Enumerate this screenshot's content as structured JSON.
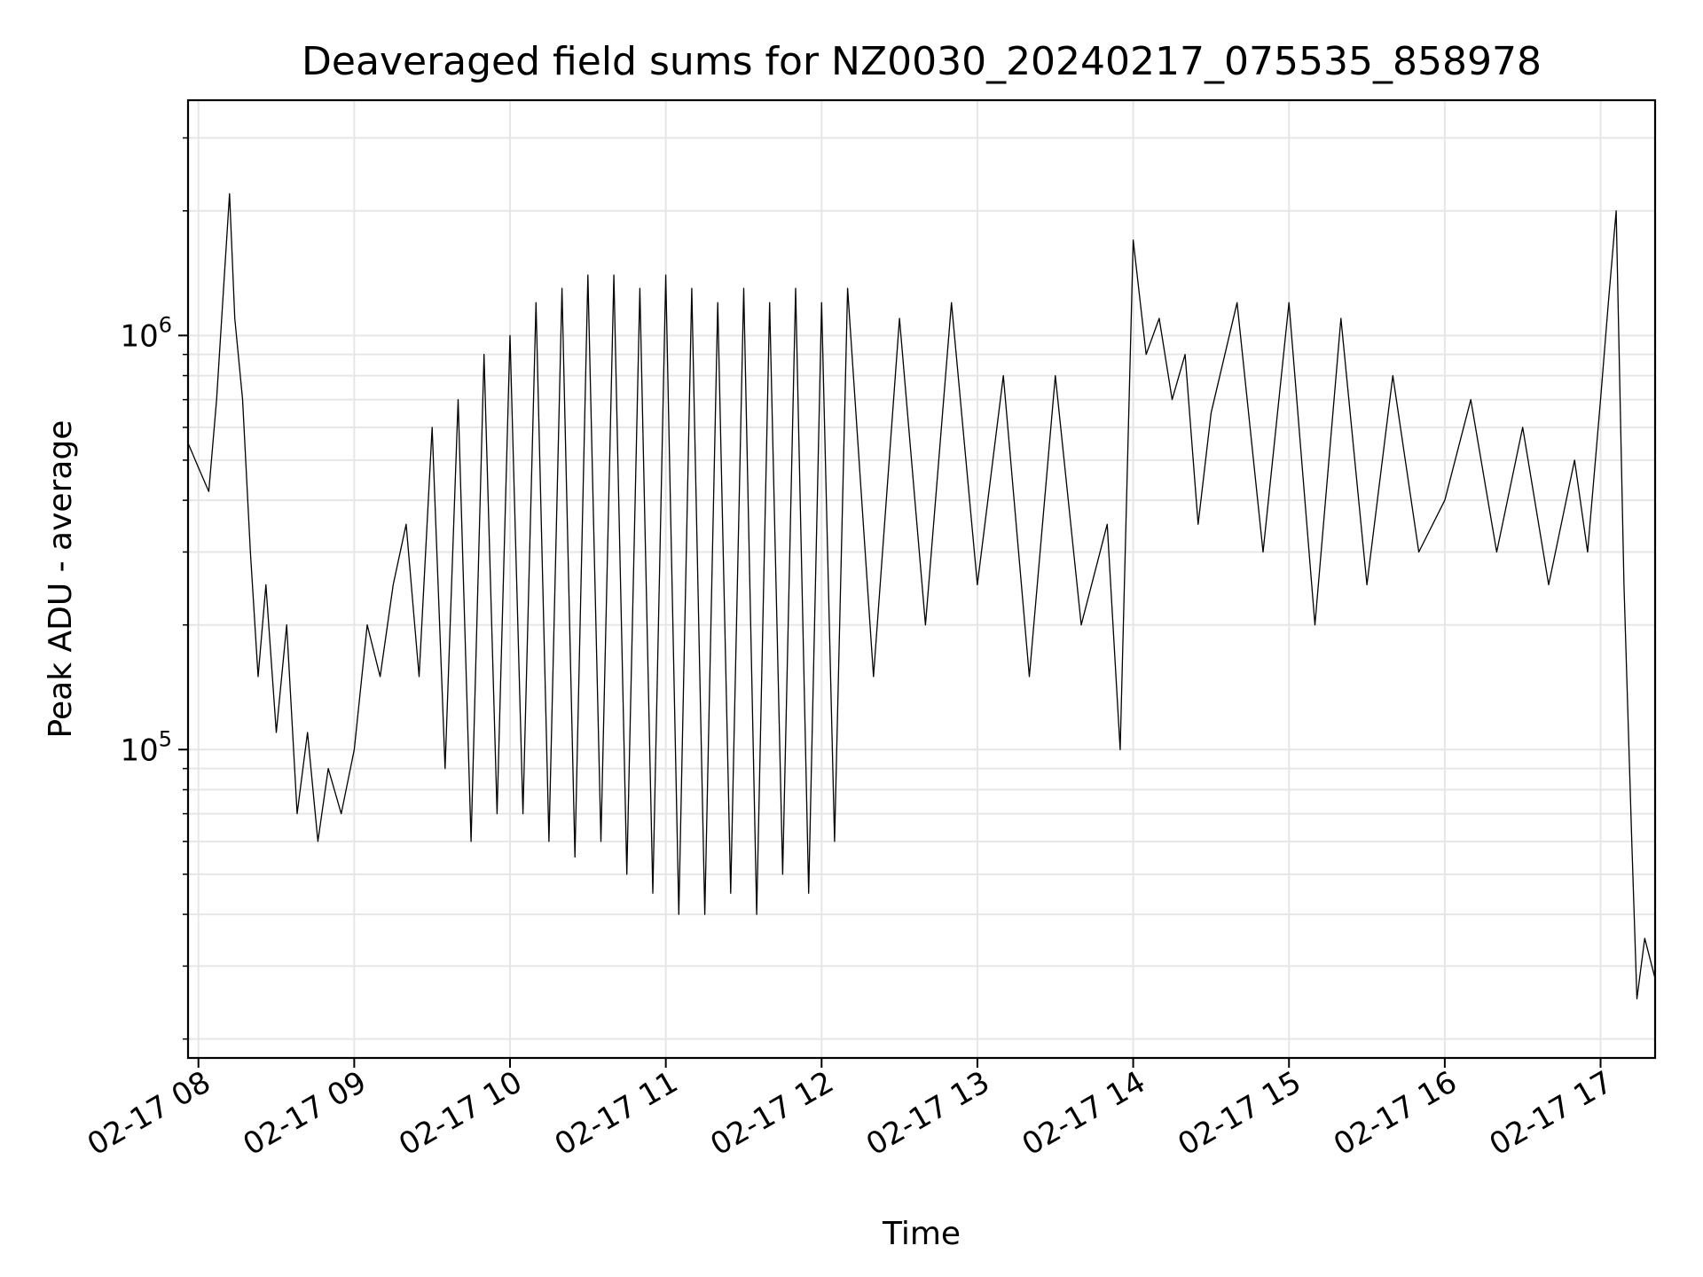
{
  "chart_data": {
    "type": "line",
    "title": "Deaveraged field sums for NZ0030_20240217_075535_858978",
    "xlabel": "Time",
    "ylabel": "Peak ADU - average",
    "yscale": "log",
    "ylim": [
      18000,
      3700000
    ],
    "xlim": [
      "2024-02-17 07:56",
      "2024-02-17 17:21"
    ],
    "x_ticks": [
      "02-17 08",
      "02-17 09",
      "02-17 10",
      "02-17 11",
      "02-17 12",
      "02-17 13",
      "02-17 14",
      "02-17 15",
      "02-17 16",
      "02-17 17"
    ],
    "x_tick_values": [
      "2024-02-17 08:00",
      "2024-02-17 09:00",
      "2024-02-17 10:00",
      "2024-02-17 11:00",
      "2024-02-17 12:00",
      "2024-02-17 13:00",
      "2024-02-17 14:00",
      "2024-02-17 15:00",
      "2024-02-17 16:00",
      "2024-02-17 17:00"
    ],
    "y_ticks": [
      {
        "base": "10",
        "exp": "5",
        "value": 100000
      },
      {
        "base": "10",
        "exp": "6",
        "value": 1000000
      }
    ],
    "grid": true,
    "line_color": "#000000",
    "grid_color": "#e6e6e6",
    "series": [
      {
        "points": [
          [
            "2024-02-17 07:56",
            550000
          ],
          [
            "2024-02-17 08:00",
            480000
          ],
          [
            "2024-02-17 08:04",
            420000
          ],
          [
            "2024-02-17 08:07",
            700000
          ],
          [
            "2024-02-17 08:10",
            1400000
          ],
          [
            "2024-02-17 08:12",
            2200000
          ],
          [
            "2024-02-17 08:14",
            1100000
          ],
          [
            "2024-02-17 08:17",
            700000
          ],
          [
            "2024-02-17 08:20",
            300000
          ],
          [
            "2024-02-17 08:23",
            150000
          ],
          [
            "2024-02-17 08:26",
            250000
          ],
          [
            "2024-02-17 08:30",
            110000
          ],
          [
            "2024-02-17 08:34",
            200000
          ],
          [
            "2024-02-17 08:38",
            70000
          ],
          [
            "2024-02-17 08:42",
            110000
          ],
          [
            "2024-02-17 08:46",
            60000
          ],
          [
            "2024-02-17 08:50",
            90000
          ],
          [
            "2024-02-17 08:55",
            70000
          ],
          [
            "2024-02-17 09:00",
            100000
          ],
          [
            "2024-02-17 09:05",
            200000
          ],
          [
            "2024-02-17 09:10",
            150000
          ],
          [
            "2024-02-17 09:15",
            250000
          ],
          [
            "2024-02-17 09:20",
            350000
          ],
          [
            "2024-02-17 09:25",
            150000
          ],
          [
            "2024-02-17 09:30",
            600000
          ],
          [
            "2024-02-17 09:35",
            90000
          ],
          [
            "2024-02-17 09:40",
            700000
          ],
          [
            "2024-02-17 09:45",
            60000
          ],
          [
            "2024-02-17 09:50",
            900000
          ],
          [
            "2024-02-17 09:55",
            70000
          ],
          [
            "2024-02-17 10:00",
            1000000
          ],
          [
            "2024-02-17 10:05",
            70000
          ],
          [
            "2024-02-17 10:10",
            1200000
          ],
          [
            "2024-02-17 10:15",
            60000
          ],
          [
            "2024-02-17 10:20",
            1300000
          ],
          [
            "2024-02-17 10:25",
            55000
          ],
          [
            "2024-02-17 10:30",
            1400000
          ],
          [
            "2024-02-17 10:35",
            60000
          ],
          [
            "2024-02-17 10:40",
            1400000
          ],
          [
            "2024-02-17 10:45",
            50000
          ],
          [
            "2024-02-17 10:50",
            1300000
          ],
          [
            "2024-02-17 10:55",
            45000
          ],
          [
            "2024-02-17 11:00",
            1400000
          ],
          [
            "2024-02-17 11:05",
            40000
          ],
          [
            "2024-02-17 11:10",
            1300000
          ],
          [
            "2024-02-17 11:15",
            40000
          ],
          [
            "2024-02-17 11:20",
            1200000
          ],
          [
            "2024-02-17 11:25",
            45000
          ],
          [
            "2024-02-17 11:30",
            1300000
          ],
          [
            "2024-02-17 11:35",
            40000
          ],
          [
            "2024-02-17 11:40",
            1200000
          ],
          [
            "2024-02-17 11:45",
            50000
          ],
          [
            "2024-02-17 11:50",
            1300000
          ],
          [
            "2024-02-17 11:55",
            45000
          ],
          [
            "2024-02-17 12:00",
            1200000
          ],
          [
            "2024-02-17 12:05",
            60000
          ],
          [
            "2024-02-17 12:10",
            1300000
          ],
          [
            "2024-02-17 12:20",
            150000
          ],
          [
            "2024-02-17 12:30",
            1100000
          ],
          [
            "2024-02-17 12:40",
            200000
          ],
          [
            "2024-02-17 12:50",
            1200000
          ],
          [
            "2024-02-17 13:00",
            250000
          ],
          [
            "2024-02-17 13:10",
            800000
          ],
          [
            "2024-02-17 13:20",
            150000
          ],
          [
            "2024-02-17 13:30",
            800000
          ],
          [
            "2024-02-17 13:40",
            200000
          ],
          [
            "2024-02-17 13:50",
            350000
          ],
          [
            "2024-02-17 13:55",
            100000
          ],
          [
            "2024-02-17 14:00",
            1700000
          ],
          [
            "2024-02-17 14:05",
            900000
          ],
          [
            "2024-02-17 14:10",
            1100000
          ],
          [
            "2024-02-17 14:15",
            700000
          ],
          [
            "2024-02-17 14:20",
            900000
          ],
          [
            "2024-02-17 14:25",
            350000
          ],
          [
            "2024-02-17 14:30",
            650000
          ],
          [
            "2024-02-17 14:40",
            1200000
          ],
          [
            "2024-02-17 14:50",
            300000
          ],
          [
            "2024-02-17 15:00",
            1200000
          ],
          [
            "2024-02-17 15:10",
            200000
          ],
          [
            "2024-02-17 15:20",
            1100000
          ],
          [
            "2024-02-17 15:30",
            250000
          ],
          [
            "2024-02-17 15:40",
            800000
          ],
          [
            "2024-02-17 15:50",
            300000
          ],
          [
            "2024-02-17 16:00",
            400000
          ],
          [
            "2024-02-17 16:10",
            700000
          ],
          [
            "2024-02-17 16:20",
            300000
          ],
          [
            "2024-02-17 16:30",
            600000
          ],
          [
            "2024-02-17 16:40",
            250000
          ],
          [
            "2024-02-17 16:50",
            500000
          ],
          [
            "2024-02-17 16:55",
            300000
          ],
          [
            "2024-02-17 17:00",
            700000
          ],
          [
            "2024-02-17 17:03",
            1200000
          ],
          [
            "2024-02-17 17:06",
            2000000
          ],
          [
            "2024-02-17 17:09",
            250000
          ],
          [
            "2024-02-17 17:12",
            60000
          ],
          [
            "2024-02-17 17:14",
            25000
          ],
          [
            "2024-02-17 17:17",
            35000
          ],
          [
            "2024-02-17 17:21",
            28000
          ]
        ]
      }
    ]
  }
}
